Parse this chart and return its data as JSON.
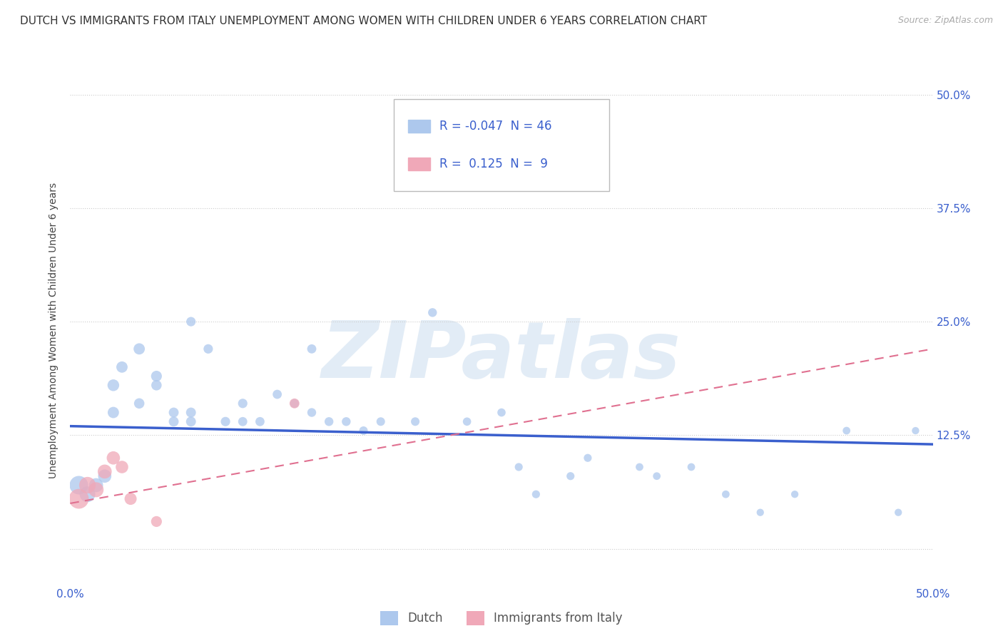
{
  "title": "DUTCH VS IMMIGRANTS FROM ITALY UNEMPLOYMENT AMONG WOMEN WITH CHILDREN UNDER 6 YEARS CORRELATION CHART",
  "source": "Source: ZipAtlas.com",
  "ylabel": "Unemployment Among Women with Children Under 6 years",
  "xlim": [
    0.0,
    0.5
  ],
  "ylim": [
    -0.04,
    0.52
  ],
  "yticks": [
    0.0,
    0.125,
    0.25,
    0.375,
    0.5
  ],
  "xticks": [
    0.0,
    0.1,
    0.2,
    0.3,
    0.4,
    0.5
  ],
  "watermark": "ZIPatlas",
  "dutch_R": -0.047,
  "dutch_N": 46,
  "italy_R": 0.125,
  "italy_N": 9,
  "dutch_color": "#adc8ed",
  "italy_color": "#f0a8b8",
  "dutch_line_color": "#3a5fcd",
  "italy_line_color": "#e07090",
  "background_color": "#ffffff",
  "grid_color": "#cccccc",
  "dutch_x": [
    0.005,
    0.01,
    0.015,
    0.02,
    0.025,
    0.025,
    0.03,
    0.04,
    0.04,
    0.05,
    0.05,
    0.06,
    0.06,
    0.07,
    0.07,
    0.07,
    0.08,
    0.09,
    0.1,
    0.1,
    0.11,
    0.12,
    0.13,
    0.14,
    0.14,
    0.15,
    0.16,
    0.17,
    0.18,
    0.2,
    0.21,
    0.23,
    0.25,
    0.26,
    0.27,
    0.29,
    0.3,
    0.33,
    0.34,
    0.36,
    0.38,
    0.4,
    0.42,
    0.45,
    0.48,
    0.49
  ],
  "dutch_y": [
    0.07,
    0.06,
    0.07,
    0.08,
    0.15,
    0.18,
    0.2,
    0.22,
    0.16,
    0.19,
    0.18,
    0.15,
    0.14,
    0.14,
    0.15,
    0.25,
    0.22,
    0.14,
    0.16,
    0.14,
    0.14,
    0.17,
    0.16,
    0.22,
    0.15,
    0.14,
    0.14,
    0.13,
    0.14,
    0.14,
    0.26,
    0.14,
    0.15,
    0.09,
    0.06,
    0.08,
    0.1,
    0.09,
    0.08,
    0.09,
    0.06,
    0.04,
    0.06,
    0.13,
    0.04,
    0.13
  ],
  "dutch_sizes": [
    350,
    250,
    200,
    180,
    130,
    140,
    130,
    130,
    110,
    120,
    110,
    100,
    100,
    100,
    100,
    90,
    90,
    90,
    90,
    85,
    85,
    85,
    80,
    85,
    80,
    80,
    80,
    75,
    75,
    75,
    80,
    70,
    70,
    65,
    65,
    65,
    65,
    60,
    60,
    60,
    60,
    55,
    55,
    60,
    55,
    55
  ],
  "italy_x": [
    0.005,
    0.01,
    0.015,
    0.02,
    0.025,
    0.03,
    0.035,
    0.05,
    0.13
  ],
  "italy_y": [
    0.055,
    0.07,
    0.065,
    0.085,
    0.1,
    0.09,
    0.055,
    0.03,
    0.16
  ],
  "italy_sizes": [
    400,
    280,
    230,
    200,
    180,
    160,
    150,
    120,
    100
  ],
  "title_fontsize": 11,
  "source_fontsize": 9,
  "axis_label_fontsize": 10,
  "tick_fontsize": 11,
  "legend_fontsize": 13
}
